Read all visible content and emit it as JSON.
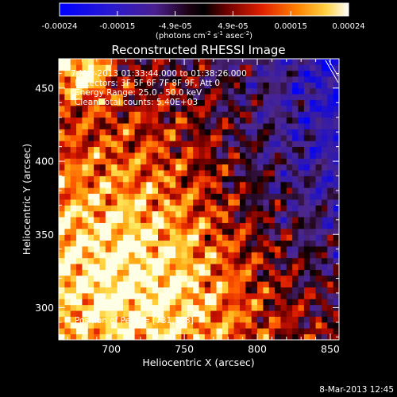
{
  "colorbar": {
    "tick_labels": [
      "-0.00024",
      "-0.00015",
      "-4.9e-05",
      "4.9e-05",
      "0.00015",
      "0.00024"
    ],
    "unit_label_parts": [
      "(photons cm",
      "-2",
      " s",
      "-1",
      " asec",
      "-2",
      ")"
    ],
    "range": [
      -0.00024,
      0.00024
    ]
  },
  "chart_data": {
    "type": "heatmap",
    "title": "Reconstructed RHESSI Image",
    "xlabel": "Heliocentric X (arcsec)",
    "ylabel": "Heliocentric Y (arcsec)",
    "xlim": [
      664,
      856
    ],
    "ylim": [
      278,
      470
    ],
    "xticks": [
      700,
      750,
      800,
      850
    ],
    "yticks": [
      300,
      350,
      400,
      450
    ],
    "x_minor_step": 10,
    "y_minor_step": 10,
    "grid": false,
    "annotations": {
      "time_range": "7-Mar-2013 01:33:44.000 to 01:38:26.000",
      "detectors": "Detectors: 3F 5F 6F 7F 8F 9F, Att 0",
      "energy_range": "Energy Range: 25.0 - 50.0 keV",
      "clean_counts": "Clean    Total counts: 5.40E+03",
      "peak": "Position of Peak = [731,308]"
    },
    "peak_position": [
      731,
      308
    ],
    "source_region": {
      "center": [
        731,
        308
      ],
      "description": "brightest emission concentrated in lower-left, fading toward upper-right"
    },
    "colors": {
      "colormap": [
        "#0000ff",
        "#3a1a8c",
        "#4a2a9c",
        "#000000",
        "#6a0000",
        "#d01000",
        "#ff6000",
        "#ffb000",
        "#ffff80",
        "#ffffff"
      ]
    }
  },
  "footer": {
    "timestamp": "8-Mar-2013 12:45"
  }
}
